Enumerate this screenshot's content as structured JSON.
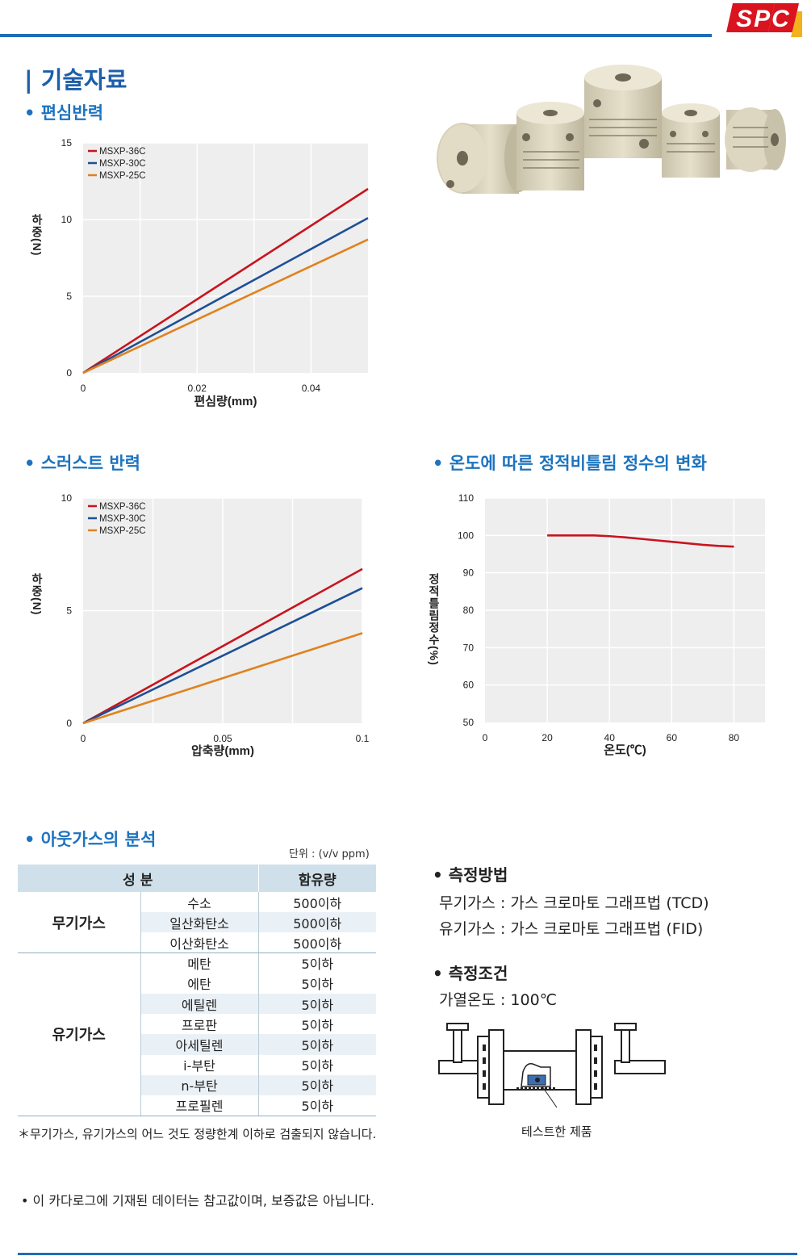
{
  "header": {
    "logo_text": "SPC",
    "page_title": "| 기술자료"
  },
  "sections": {
    "eccentric": "• 편심반력",
    "thrust": "• 스러스트 반력",
    "temperature": "• 온도에 따른 정적비틀림 정수의 변화",
    "outgas": "• 아웃가스의 분석",
    "method": "• 측정방법",
    "condition": "• 측정조건"
  },
  "colors": {
    "accent": "#1d73bf",
    "line": "#1f6db5",
    "series_36c": "#c8141e",
    "series_30c": "#1e4f96",
    "series_25c": "#e0821e",
    "plot_bg": "#eeeeee",
    "table_header": "#cfe0ea"
  },
  "chart_data": [
    {
      "type": "line",
      "ylabel": "하중(N)",
      "xlabel": "편심량(mm)",
      "xlim": [
        0,
        0.05
      ],
      "ylim": [
        0,
        15
      ],
      "x_ticks": [
        0,
        0.02,
        0.04
      ],
      "y_ticks": [
        0,
        5,
        10,
        15
      ],
      "x_tick_labels": [
        "0",
        "0.02",
        "0.04"
      ],
      "y_tick_labels": [
        "0",
        "5",
        "10",
        "15"
      ],
      "grid": true,
      "legend_position": "top-left",
      "series": [
        {
          "name": "MSXP-36C",
          "color": "#c8141e",
          "x": [
            0,
            0.05
          ],
          "y": [
            0,
            12.0
          ]
        },
        {
          "name": "MSXP-30C",
          "color": "#1e4f96",
          "x": [
            0,
            0.05
          ],
          "y": [
            0,
            10.1
          ]
        },
        {
          "name": "MSXP-25C",
          "color": "#e0821e",
          "x": [
            0,
            0.05
          ],
          "y": [
            0,
            8.7
          ]
        }
      ]
    },
    {
      "type": "line",
      "ylabel": "하중(N)",
      "xlabel": "압축량(mm)",
      "xlim": [
        0,
        0.1
      ],
      "ylim": [
        0,
        10
      ],
      "x_ticks": [
        0,
        0.05,
        0.1
      ],
      "y_ticks": [
        0,
        5,
        10
      ],
      "x_tick_labels": [
        "0",
        "0.05",
        "0.1"
      ],
      "y_tick_labels": [
        "0",
        "5",
        "10"
      ],
      "grid": true,
      "legend_position": "top-left",
      "series": [
        {
          "name": "MSXP-36C",
          "color": "#c8141e",
          "x": [
            0,
            0.1
          ],
          "y": [
            0,
            6.85
          ]
        },
        {
          "name": "MSXP-30C",
          "color": "#1e4f96",
          "x": [
            0,
            0.1
          ],
          "y": [
            0,
            6.0
          ]
        },
        {
          "name": "MSXP-25C",
          "color": "#e0821e",
          "x": [
            0,
            0.1
          ],
          "y": [
            0,
            4.0
          ]
        }
      ]
    },
    {
      "type": "line",
      "ylabel": "정적틀림정수(%)",
      "xlabel": "온도(℃)",
      "xlim": [
        0,
        90
      ],
      "ylim": [
        50,
        110
      ],
      "x_ticks": [
        0,
        20,
        40,
        60,
        80
      ],
      "y_ticks": [
        50,
        60,
        70,
        80,
        90,
        100,
        110
      ],
      "x_tick_labels": [
        "0",
        "20",
        "40",
        "60",
        "80"
      ],
      "y_tick_labels": [
        "50",
        "60",
        "70",
        "80",
        "90",
        "100",
        "110"
      ],
      "grid": true,
      "series": [
        {
          "color": "#c8141e",
          "x": [
            20,
            25,
            30,
            35,
            40,
            45,
            50,
            55,
            60,
            65,
            70,
            75,
            80
          ],
          "y": [
            100,
            100,
            100,
            100,
            99.8,
            99.5,
            99.1,
            98.7,
            98.3,
            97.9,
            97.5,
            97.2,
            97.0
          ]
        }
      ]
    }
  ],
  "outgas": {
    "unit": "단위 :   (v/v ppm)",
    "headers": [
      "성 분",
      "함유량"
    ],
    "groups": [
      {
        "name": "무기가스",
        "rows": [
          [
            "수소",
            "500이하"
          ],
          [
            "일산화탄소",
            "500이하"
          ],
          [
            "이산화탄소",
            "500이하"
          ]
        ]
      },
      {
        "name": "유기가스",
        "rows": [
          [
            "메탄",
            "5이하"
          ],
          [
            "에탄",
            "5이하"
          ],
          [
            "에틸렌",
            "5이하"
          ],
          [
            "프로판",
            "5이하"
          ],
          [
            "아세틸렌",
            "5이하"
          ],
          [
            "i-부탄",
            "5이하"
          ],
          [
            "n-부탄",
            "5이하"
          ],
          [
            "프로필렌",
            "5이하"
          ]
        ]
      }
    ],
    "note": "＊무기가스, 유기가스의 어느 것도 정량한계 이하로 검출되지 않습니다."
  },
  "method": {
    "line1": "무기가스 : 가스 크로마토 그래프법 (TCD)",
    "line2": "유기가스 : 가스 크로마토 그래프법 (FID)"
  },
  "condition": {
    "line1": "가열온도 : 100℃"
  },
  "diagram_caption": "테스트한 제품",
  "disclaimer": "• 이 카다로그에 기재된 데이터는 참고값이며, 보증값은 아닙니다."
}
